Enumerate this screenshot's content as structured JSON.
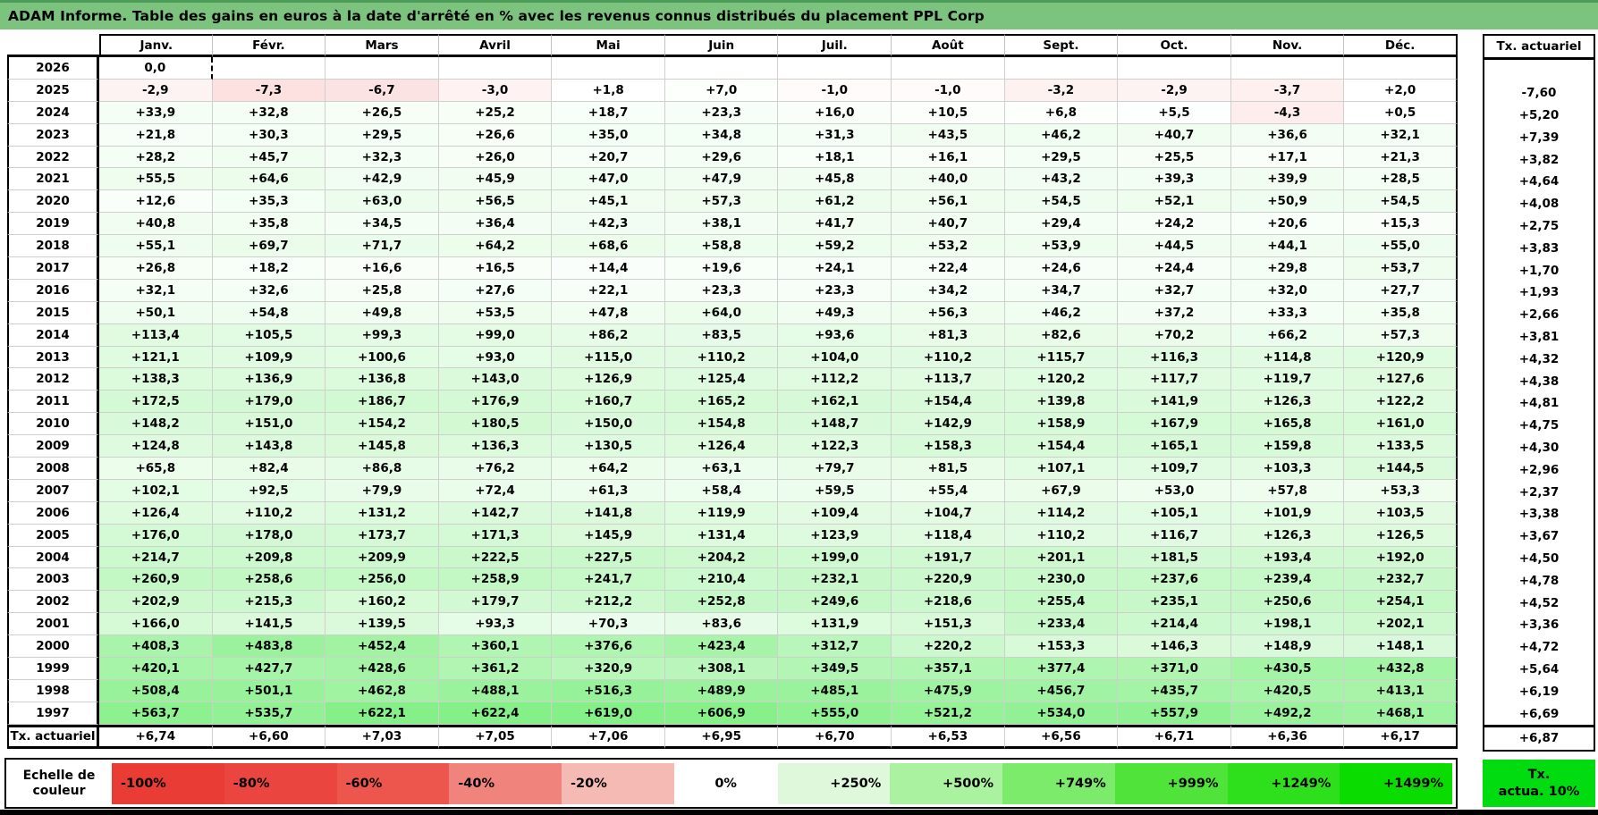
{
  "title": "ADAM Informe. Table des gains en euros à la date d'arrêté en % avec les revenus connus distribués du placement PPL Corp",
  "colors": {
    "title_bar": "#7cc47e",
    "title_bar_edge": "#4d9b58",
    "grid_line": "#cfcfcf",
    "border": "#000000",
    "negative_full": "#e93c35",
    "positive_full": "#00df05",
    "tx_box_green": "#00dc0f"
  },
  "table": {
    "months": [
      "Janv.",
      "Févr.",
      "Mars",
      "Avril",
      "Mai",
      "Juin",
      "Juil.",
      "Août",
      "Sept.",
      "Oct.",
      "Nov.",
      "Déc."
    ],
    "tx_header": "Tx. actuariel",
    "footer_label": "Tx. actuariel",
    "selection": {
      "year": "2026",
      "month_index": 0
    },
    "rows": [
      {
        "year": "2026",
        "values": [
          "0,0",
          "",
          "",
          "",
          "",
          "",
          "",
          "",
          "",
          "",
          "",
          ""
        ],
        "tx": ""
      },
      {
        "year": "2025",
        "values": [
          "-2,9",
          "-7,3",
          "-6,7",
          "-3,0",
          "+1,8",
          "+7,0",
          "-1,0",
          "-1,0",
          "-3,2",
          "-2,9",
          "-3,7",
          "+2,0"
        ],
        "tx": "-7,60"
      },
      {
        "year": "2024",
        "values": [
          "+33,9",
          "+32,8",
          "+26,5",
          "+25,2",
          "+18,7",
          "+23,3",
          "+16,0",
          "+10,5",
          "+6,8",
          "+5,5",
          "-4,3",
          "+0,5"
        ],
        "tx": "+5,20"
      },
      {
        "year": "2023",
        "values": [
          "+21,8",
          "+30,3",
          "+29,5",
          "+26,6",
          "+35,0",
          "+34,8",
          "+31,3",
          "+43,5",
          "+46,2",
          "+40,7",
          "+36,6",
          "+32,1"
        ],
        "tx": "+7,39"
      },
      {
        "year": "2022",
        "values": [
          "+28,2",
          "+45,7",
          "+32,3",
          "+26,0",
          "+20,7",
          "+29,6",
          "+18,1",
          "+16,1",
          "+29,5",
          "+25,5",
          "+17,1",
          "+21,3"
        ],
        "tx": "+3,82"
      },
      {
        "year": "2021",
        "values": [
          "+55,5",
          "+64,6",
          "+42,9",
          "+45,9",
          "+47,0",
          "+47,9",
          "+45,8",
          "+40,0",
          "+43,2",
          "+39,3",
          "+39,9",
          "+28,5"
        ],
        "tx": "+4,64"
      },
      {
        "year": "2020",
        "values": [
          "+12,6",
          "+35,3",
          "+63,0",
          "+56,5",
          "+45,1",
          "+57,3",
          "+61,2",
          "+56,1",
          "+54,5",
          "+52,1",
          "+50,9",
          "+54,5"
        ],
        "tx": "+4,08"
      },
      {
        "year": "2019",
        "values": [
          "+40,8",
          "+35,8",
          "+34,5",
          "+36,4",
          "+42,3",
          "+38,1",
          "+41,7",
          "+40,7",
          "+29,4",
          "+24,2",
          "+20,6",
          "+15,3"
        ],
        "tx": "+2,75"
      },
      {
        "year": "2018",
        "values": [
          "+55,1",
          "+69,7",
          "+71,7",
          "+64,2",
          "+68,6",
          "+58,8",
          "+59,2",
          "+53,2",
          "+53,9",
          "+44,5",
          "+44,1",
          "+55,0"
        ],
        "tx": "+3,83"
      },
      {
        "year": "2017",
        "values": [
          "+26,8",
          "+18,2",
          "+16,6",
          "+16,5",
          "+14,4",
          "+19,6",
          "+24,1",
          "+22,4",
          "+24,6",
          "+24,4",
          "+29,8",
          "+53,7"
        ],
        "tx": "+1,70"
      },
      {
        "year": "2016",
        "values": [
          "+32,1",
          "+32,6",
          "+25,8",
          "+27,6",
          "+22,1",
          "+23,3",
          "+23,3",
          "+34,2",
          "+34,7",
          "+32,7",
          "+32,0",
          "+27,7"
        ],
        "tx": "+1,93"
      },
      {
        "year": "2015",
        "values": [
          "+50,1",
          "+54,8",
          "+49,8",
          "+53,5",
          "+47,8",
          "+64,0",
          "+49,3",
          "+56,3",
          "+46,2",
          "+37,2",
          "+33,3",
          "+35,8"
        ],
        "tx": "+2,66"
      },
      {
        "year": "2014",
        "values": [
          "+113,4",
          "+105,5",
          "+99,3",
          "+99,0",
          "+86,2",
          "+83,5",
          "+93,6",
          "+81,3",
          "+82,6",
          "+70,2",
          "+66,2",
          "+57,3"
        ],
        "tx": "+3,81"
      },
      {
        "year": "2013",
        "values": [
          "+121,1",
          "+109,9",
          "+100,6",
          "+93,0",
          "+115,0",
          "+110,2",
          "+104,0",
          "+110,2",
          "+115,7",
          "+116,3",
          "+114,8",
          "+120,9"
        ],
        "tx": "+4,32"
      },
      {
        "year": "2012",
        "values": [
          "+138,3",
          "+136,9",
          "+136,8",
          "+143,0",
          "+126,9",
          "+125,4",
          "+112,2",
          "+113,7",
          "+120,2",
          "+117,7",
          "+119,7",
          "+127,6"
        ],
        "tx": "+4,38"
      },
      {
        "year": "2011",
        "values": [
          "+172,5",
          "+179,0",
          "+186,7",
          "+176,9",
          "+160,7",
          "+165,2",
          "+162,1",
          "+154,4",
          "+139,8",
          "+141,9",
          "+126,3",
          "+122,2"
        ],
        "tx": "+4,81"
      },
      {
        "year": "2010",
        "values": [
          "+148,2",
          "+151,0",
          "+154,2",
          "+180,5",
          "+150,0",
          "+154,8",
          "+148,7",
          "+142,9",
          "+158,9",
          "+167,9",
          "+165,8",
          "+161,0"
        ],
        "tx": "+4,75"
      },
      {
        "year": "2009",
        "values": [
          "+124,8",
          "+143,8",
          "+145,8",
          "+136,3",
          "+130,5",
          "+126,4",
          "+122,3",
          "+158,3",
          "+154,4",
          "+165,1",
          "+159,8",
          "+133,5"
        ],
        "tx": "+4,30"
      },
      {
        "year": "2008",
        "values": [
          "+65,8",
          "+82,4",
          "+86,8",
          "+76,2",
          "+64,2",
          "+63,1",
          "+79,7",
          "+81,5",
          "+107,1",
          "+109,7",
          "+103,3",
          "+144,5"
        ],
        "tx": "+2,96"
      },
      {
        "year": "2007",
        "values": [
          "+102,1",
          "+92,5",
          "+79,9",
          "+72,4",
          "+61,3",
          "+58,4",
          "+59,5",
          "+55,4",
          "+67,9",
          "+53,0",
          "+57,8",
          "+53,3"
        ],
        "tx": "+2,37"
      },
      {
        "year": "2006",
        "values": [
          "+126,4",
          "+110,2",
          "+131,2",
          "+142,7",
          "+141,8",
          "+119,9",
          "+109,4",
          "+104,7",
          "+114,2",
          "+105,1",
          "+101,9",
          "+103,5"
        ],
        "tx": "+3,38"
      },
      {
        "year": "2005",
        "values": [
          "+176,0",
          "+178,0",
          "+173,7",
          "+171,3",
          "+145,9",
          "+131,4",
          "+123,9",
          "+118,4",
          "+110,2",
          "+116,7",
          "+126,3",
          "+126,5"
        ],
        "tx": "+3,67"
      },
      {
        "year": "2004",
        "values": [
          "+214,7",
          "+209,8",
          "+209,9",
          "+222,5",
          "+227,5",
          "+204,2",
          "+199,0",
          "+191,7",
          "+201,1",
          "+181,5",
          "+193,4",
          "+192,0"
        ],
        "tx": "+4,50"
      },
      {
        "year": "2003",
        "values": [
          "+260,9",
          "+258,6",
          "+256,0",
          "+258,9",
          "+241,7",
          "+210,4",
          "+232,1",
          "+220,9",
          "+230,0",
          "+237,6",
          "+239,4",
          "+232,7"
        ],
        "tx": "+4,78"
      },
      {
        "year": "2002",
        "values": [
          "+202,9",
          "+215,3",
          "+160,2",
          "+179,7",
          "+212,2",
          "+252,8",
          "+249,6",
          "+218,6",
          "+255,4",
          "+235,1",
          "+250,6",
          "+254,1"
        ],
        "tx": "+4,52"
      },
      {
        "year": "2001",
        "values": [
          "+166,0",
          "+141,5",
          "+139,5",
          "+93,3",
          "+70,3",
          "+83,6",
          "+131,9",
          "+151,3",
          "+233,4",
          "+214,4",
          "+198,1",
          "+202,1"
        ],
        "tx": "+3,36"
      },
      {
        "year": "2000",
        "values": [
          "+408,3",
          "+483,8",
          "+452,4",
          "+360,1",
          "+376,6",
          "+423,4",
          "+312,7",
          "+220,2",
          "+153,3",
          "+146,3",
          "+148,9",
          "+148,1"
        ],
        "tx": "+4,72"
      },
      {
        "year": "1999",
        "values": [
          "+420,1",
          "+427,7",
          "+428,6",
          "+361,2",
          "+320,9",
          "+308,1",
          "+349,5",
          "+357,1",
          "+377,4",
          "+371,0",
          "+430,5",
          "+432,8"
        ],
        "tx": "+5,64"
      },
      {
        "year": "1998",
        "values": [
          "+508,4",
          "+501,1",
          "+462,8",
          "+488,1",
          "+516,3",
          "+489,9",
          "+485,1",
          "+475,9",
          "+456,7",
          "+435,7",
          "+420,5",
          "+413,1"
        ],
        "tx": "+6,19"
      },
      {
        "year": "1997",
        "values": [
          "+563,7",
          "+535,7",
          "+622,1",
          "+622,4",
          "+619,0",
          "+606,9",
          "+555,0",
          "+521,2",
          "+534,0",
          "+557,9",
          "+492,2",
          "+468,1"
        ],
        "tx": "+6,69"
      }
    ],
    "footer_values": [
      "+6,74",
      "+6,60",
      "+7,03",
      "+7,05",
      "+7,06",
      "+6,95",
      "+6,70",
      "+6,53",
      "+6,56",
      "+6,71",
      "+6,36",
      "+6,17"
    ],
    "footer_tx": "+6,87"
  },
  "legend": {
    "label": "Echelle de couleur",
    "cells": [
      {
        "label": "-100%",
        "color": "#e93c35",
        "align": "left"
      },
      {
        "label": "-80%",
        "color": "#ea453e",
        "align": "left"
      },
      {
        "label": "-60%",
        "color": "#ed564d",
        "align": "left"
      },
      {
        "label": "-40%",
        "color": "#f0837b",
        "align": "left"
      },
      {
        "label": "-20%",
        "color": "#f6bab5",
        "align": "left"
      },
      {
        "label": "0%",
        "color": "#ffffff",
        "align": "center"
      },
      {
        "label": "+250%",
        "color": "#dff8db",
        "align": "right"
      },
      {
        "label": "+500%",
        "color": "#aaf2a0",
        "align": "right"
      },
      {
        "label": "+749%",
        "color": "#7cea6b",
        "align": "right"
      },
      {
        "label": "+999%",
        "color": "#50e43b",
        "align": "right"
      },
      {
        "label": "+1249%",
        "color": "#2ee01b",
        "align": "right"
      },
      {
        "label": "+1499%",
        "color": "#0bdc00",
        "align": "right"
      }
    ],
    "tx_box": {
      "line1": "Tx.",
      "line2": "actua. 10%",
      "color": "#00dc0f"
    }
  }
}
